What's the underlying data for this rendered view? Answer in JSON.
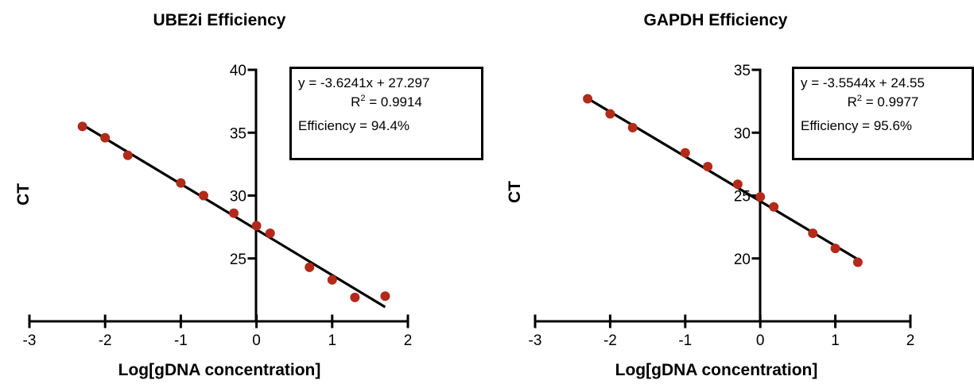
{
  "chart_data": [
    {
      "type": "scatter",
      "title": "UBE2i Efficiency",
      "xlabel": "Log[gDNA concentration]",
      "ylabel": "CT",
      "xlim": [
        -3,
        2
      ],
      "ylim": [
        20,
        40
      ],
      "xticks": [
        -3,
        -2,
        -1,
        0,
        1,
        2
      ],
      "yticks": [
        25,
        30,
        35,
        40
      ],
      "grid": false,
      "series": [
        {
          "x": [
            -2.3,
            -2.0,
            -1.7,
            -1.0,
            -0.7,
            -0.3,
            0.0,
            0.18,
            0.7,
            1.0,
            1.3,
            1.7
          ],
          "y": [
            35.5,
            34.6,
            33.2,
            31.0,
            30.0,
            28.6,
            27.6,
            27.0,
            24.3,
            23.3,
            21.9,
            22.0
          ]
        }
      ],
      "fit": {
        "slope": -3.6241,
        "intercept": 27.297,
        "x_range": [
          -2.3,
          1.7
        ]
      },
      "annotation": {
        "equation": "y = -3.6241x + 27.297",
        "r2_prefix": "R",
        "r2_value": " = 0.9914",
        "efficiency": "Efficiency = 94.4%"
      },
      "colors": {
        "points": "#b22a1a",
        "line": "#000000"
      }
    },
    {
      "type": "scatter",
      "title": "GAPDH Efficiency",
      "xlabel": "Log[gDNA concentration]",
      "ylabel": "CT",
      "xlim": [
        -3,
        2
      ],
      "ylim": [
        15,
        35
      ],
      "xticks": [
        -3,
        -2,
        -1,
        0,
        1,
        2
      ],
      "yticks": [
        20,
        25,
        30,
        35
      ],
      "grid": false,
      "series": [
        {
          "x": [
            -2.3,
            -2.0,
            -1.7,
            -1.0,
            -0.7,
            -0.3,
            0.0,
            0.18,
            0.7,
            1.0,
            1.3
          ],
          "y": [
            32.7,
            31.5,
            30.4,
            28.4,
            27.3,
            25.9,
            24.9,
            24.1,
            22.0,
            20.8,
            19.7
          ]
        }
      ],
      "fit": {
        "slope": -3.5544,
        "intercept": 24.55,
        "x_range": [
          -2.3,
          1.3
        ]
      },
      "annotation": {
        "equation": "y = -3.5544x + 24.55",
        "r2_prefix": "R",
        "r2_value": " = 0.9977",
        "efficiency": "Efficiency = 95.6%"
      },
      "colors": {
        "points": "#b22a1a",
        "line": "#000000"
      }
    }
  ]
}
